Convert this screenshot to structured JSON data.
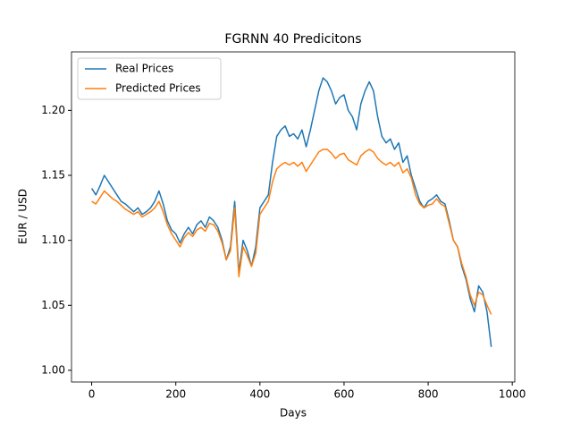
{
  "chart_data": {
    "type": "line",
    "title": "FGRNN 40 Predicitons",
    "x_label": "Days",
    "y_label": "EUR / USD",
    "x": [
      0,
      10,
      20,
      30,
      40,
      50,
      60,
      70,
      80,
      90,
      100,
      110,
      120,
      130,
      140,
      150,
      160,
      170,
      180,
      190,
      200,
      210,
      220,
      230,
      240,
      250,
      260,
      270,
      280,
      290,
      300,
      310,
      320,
      330,
      340,
      350,
      360,
      370,
      380,
      390,
      400,
      410,
      420,
      430,
      440,
      450,
      460,
      470,
      480,
      490,
      500,
      510,
      520,
      530,
      540,
      550,
      560,
      570,
      580,
      590,
      600,
      610,
      620,
      630,
      640,
      650,
      660,
      670,
      680,
      690,
      700,
      710,
      720,
      730,
      740,
      750,
      760,
      770,
      780,
      790,
      800,
      810,
      820,
      830,
      840,
      850,
      860,
      870,
      880,
      890,
      900,
      910,
      920,
      930,
      940,
      950
    ],
    "series": [
      {
        "name": "Real Prices",
        "color": "#1f77b4",
        "values": [
          1.14,
          1.135,
          1.142,
          1.15,
          1.145,
          1.14,
          1.135,
          1.13,
          1.128,
          1.125,
          1.122,
          1.125,
          1.12,
          1.122,
          1.125,
          1.13,
          1.138,
          1.128,
          1.115,
          1.108,
          1.105,
          1.098,
          1.105,
          1.11,
          1.105,
          1.112,
          1.115,
          1.11,
          1.118,
          1.115,
          1.11,
          1.1,
          1.085,
          1.095,
          1.13,
          1.075,
          1.1,
          1.092,
          1.08,
          1.095,
          1.125,
          1.13,
          1.135,
          1.16,
          1.18,
          1.185,
          1.188,
          1.18,
          1.182,
          1.178,
          1.185,
          1.172,
          1.185,
          1.2,
          1.215,
          1.225,
          1.222,
          1.215,
          1.205,
          1.21,
          1.212,
          1.2,
          1.195,
          1.185,
          1.205,
          1.215,
          1.222,
          1.215,
          1.195,
          1.18,
          1.175,
          1.178,
          1.17,
          1.175,
          1.16,
          1.165,
          1.15,
          1.14,
          1.13,
          1.125,
          1.13,
          1.132,
          1.135,
          1.13,
          1.128,
          1.115,
          1.1,
          1.095,
          1.08,
          1.07,
          1.055,
          1.045,
          1.065,
          1.06,
          1.045,
          1.018
        ]
      },
      {
        "name": "Predicted Prices",
        "color": "#ff7f0e",
        "values": [
          1.13,
          1.128,
          1.133,
          1.138,
          1.135,
          1.132,
          1.13,
          1.127,
          1.124,
          1.122,
          1.12,
          1.122,
          1.118,
          1.12,
          1.122,
          1.125,
          1.13,
          1.122,
          1.112,
          1.105,
          1.1,
          1.095,
          1.102,
          1.106,
          1.103,
          1.108,
          1.11,
          1.107,
          1.113,
          1.112,
          1.107,
          1.098,
          1.085,
          1.092,
          1.125,
          1.072,
          1.095,
          1.088,
          1.08,
          1.09,
          1.12,
          1.125,
          1.13,
          1.145,
          1.155,
          1.158,
          1.16,
          1.158,
          1.16,
          1.157,
          1.16,
          1.153,
          1.158,
          1.163,
          1.168,
          1.17,
          1.17,
          1.167,
          1.163,
          1.166,
          1.167,
          1.162,
          1.16,
          1.158,
          1.165,
          1.168,
          1.17,
          1.168,
          1.163,
          1.16,
          1.158,
          1.16,
          1.157,
          1.16,
          1.152,
          1.155,
          1.148,
          1.135,
          1.128,
          1.125,
          1.127,
          1.128,
          1.132,
          1.128,
          1.126,
          1.113,
          1.1,
          1.095,
          1.082,
          1.072,
          1.058,
          1.05,
          1.06,
          1.058,
          1.05,
          1.043
        ]
      }
    ],
    "xlim": [
      -48,
      1006
    ],
    "xticks": [
      0,
      200,
      400,
      600,
      800,
      1000
    ],
    "ylim": [
      0.991,
      1.245
    ],
    "yticks": [
      {
        "value": 1.0,
        "label": "1.00"
      },
      1.05,
      {
        "value": 1.1,
        "label": "1.10"
      },
      1.15,
      {
        "value": 1.2,
        "label": "1.20"
      }
    ],
    "legend": "upper left",
    "grid": false
  }
}
